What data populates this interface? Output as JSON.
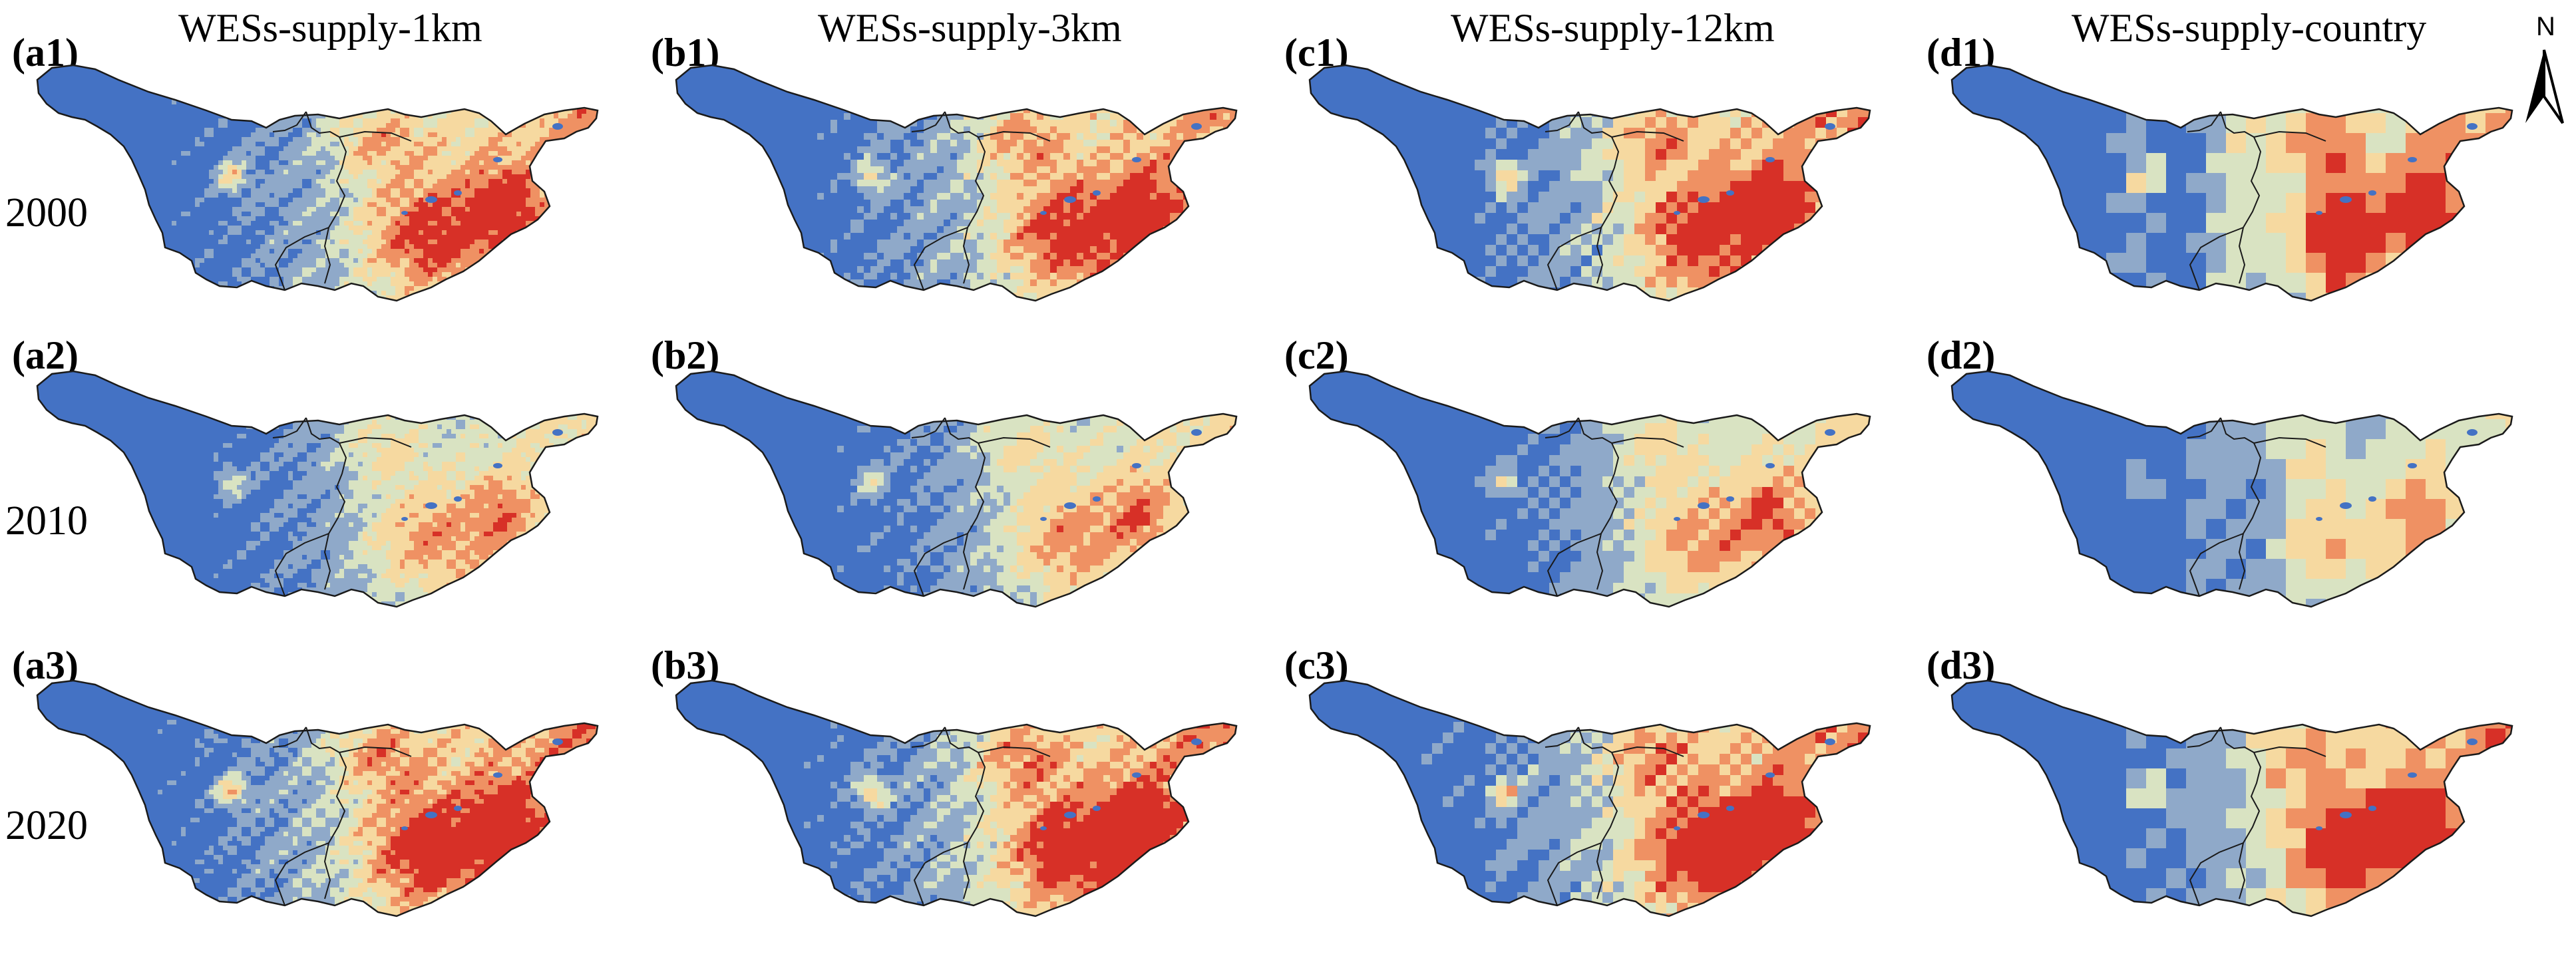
{
  "columns": [
    {
      "title": "WESs-supply-1km"
    },
    {
      "title": "WESs-supply-3km"
    },
    {
      "title": "WESs-supply-12km"
    },
    {
      "title": "WESs-supply-country"
    }
  ],
  "years": [
    "2000",
    "2010",
    "2020"
  ],
  "panels": [
    [
      "(a1)",
      "(b1)",
      "(c1)",
      "(d1)"
    ],
    [
      "(a2)",
      "(b2)",
      "(c2)",
      "(d2)"
    ],
    [
      "(a3)",
      "(b3)",
      "(c3)",
      "(d3)"
    ]
  ],
  "north_label": "N",
  "palette": {
    "deep_blue": "#4472c4",
    "light_blue": "#8fa9c9",
    "pale_green": "#d9e3c2",
    "cream": "#f6d9a0",
    "orange": "#ef9163",
    "red": "#d73027",
    "basin_outline": "#1a1a1a"
  },
  "intensity": [
    [
      0.55,
      0.58,
      0.62,
      0.6
    ],
    [
      0.3,
      0.32,
      0.34,
      0.22
    ],
    [
      0.65,
      0.66,
      0.68,
      0.62
    ]
  ]
}
